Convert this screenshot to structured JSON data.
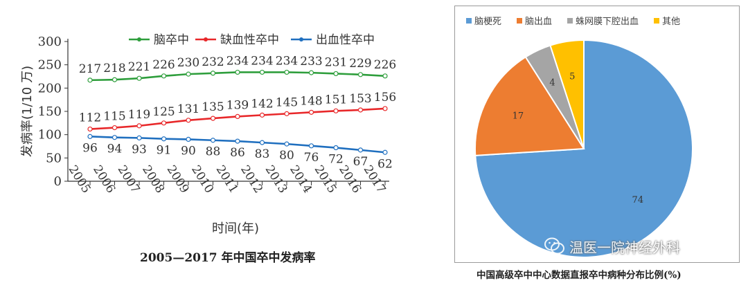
{
  "chart_data": [
    {
      "type": "line",
      "title": "2005—2017 年中国卒中发病率",
      "xlabel": "时间(年)",
      "ylabel": "发病率(1/10 万)",
      "ylim": [
        0,
        300
      ],
      "yticks": [
        0,
        50,
        100,
        150,
        200,
        250,
        300
      ],
      "legend_position": "top",
      "x": [
        "2005",
        "2006",
        "2007",
        "2008",
        "2009",
        "2010",
        "2011",
        "2012",
        "2013",
        "2014",
        "2015",
        "2016",
        "2017"
      ],
      "series": [
        {
          "name": "脑卒中",
          "color": "#2e9e3c",
          "values": [
            217,
            218,
            221,
            226,
            230,
            232,
            234,
            234,
            234,
            233,
            231,
            229,
            226
          ]
        },
        {
          "name": "缺血性卒中",
          "color": "#e8282a",
          "values": [
            112,
            115,
            119,
            125,
            131,
            135,
            139,
            142,
            145,
            148,
            151,
            153,
            156
          ]
        },
        {
          "name": "出血性卒中",
          "color": "#1f6fbf",
          "values": [
            96,
            94,
            93,
            91,
            90,
            88,
            86,
            83,
            80,
            76,
            72,
            67,
            62
          ]
        }
      ]
    },
    {
      "type": "pie",
      "title": "中国高级卒中中心数据直报卒中病种分布比例(%)",
      "legend_position": "top",
      "slices": [
        {
          "name": "脑梗死",
          "value": 74,
          "color": "#5b9bd5"
        },
        {
          "name": "脑出血",
          "value": 17,
          "color": "#ed7d31"
        },
        {
          "name": "蛛网膜下腔出血",
          "value": 4,
          "color": "#a5a5a5"
        },
        {
          "name": "其他",
          "value": 5,
          "color": "#ffc000"
        }
      ]
    }
  ],
  "watermark": {
    "text": "温医一院神经外科",
    "icon": "wechat-icon"
  }
}
